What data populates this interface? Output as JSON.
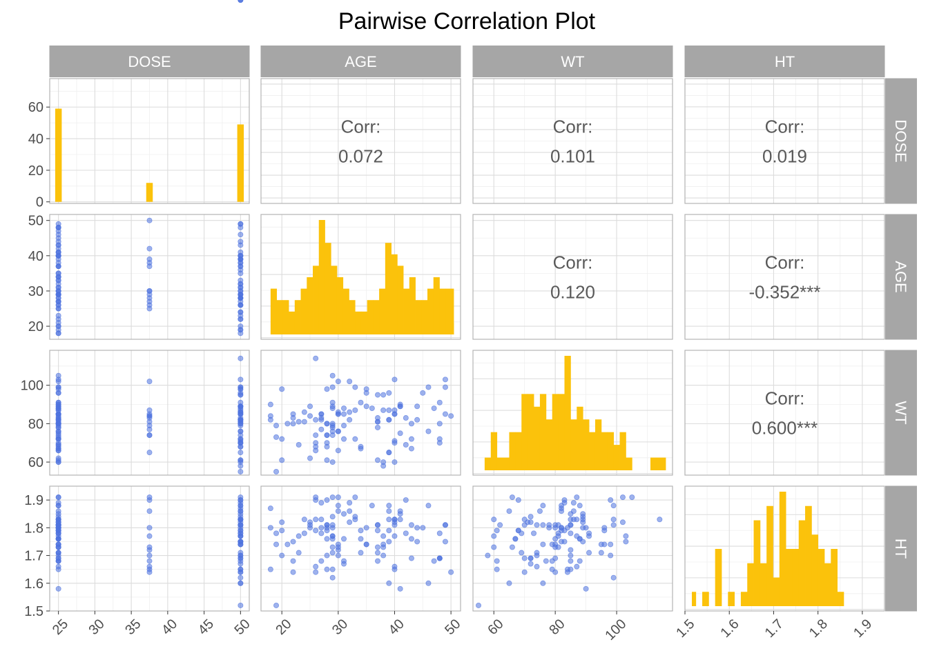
{
  "chart_data": {
    "type": "pairs",
    "title": "Pairwise Correlation Plot",
    "variables": [
      "DOSE",
      "AGE",
      "WT",
      "HT"
    ],
    "corr_label": "Corr:",
    "correlations": [
      {
        "row": "AGE",
        "col": "DOSE",
        "text": "0.072"
      },
      {
        "row": "WT",
        "col": "DOSE",
        "text": "0.101"
      },
      {
        "row": "HT",
        "col": "DOSE",
        "text": "0.019"
      },
      {
        "row": "WT",
        "col": "AGE",
        "text": "0.120"
      },
      {
        "row": "HT",
        "col": "AGE",
        "text": "-0.352***"
      },
      {
        "row": "HT",
        "col": "WT",
        "text": "0.600***"
      }
    ],
    "axes": {
      "DOSE": {
        "range": [
          23.8,
          51.2
        ],
        "ticks": [
          25,
          30,
          35,
          40,
          45,
          50
        ],
        "tick_labels": [
          "25",
          "30",
          "35",
          "40",
          "45",
          "50"
        ]
      },
      "AGE": {
        "range": [
          16.3,
          51.7
        ],
        "ticks": [
          20,
          30,
          40,
          50
        ],
        "tick_labels": [
          "20",
          "30",
          "40",
          "50"
        ]
      },
      "WT": {
        "range": [
          53.2,
          118.2
        ],
        "ticks": [
          60,
          80,
          100
        ],
        "tick_labels": [
          "60",
          "80",
          "100"
        ]
      },
      "HT": {
        "range": [
          1.5,
          1.95
        ],
        "ticks": [
          1.5,
          1.6,
          1.7,
          1.8,
          1.9
        ],
        "tick_labels": [
          "1.5",
          "1.6",
          "1.7",
          "1.8",
          "1.9"
        ]
      }
    },
    "diag_count_axis": {
      "range": [
        -1,
        78
      ],
      "ticks": [
        0,
        20,
        40,
        60
      ],
      "tick_labels": [
        "0",
        "20",
        "40",
        "60"
      ]
    },
    "histograms": {
      "DOSE": {
        "bin_width": 0.9,
        "bins": [
          {
            "x": 25,
            "count": 59
          },
          {
            "x": 37.5,
            "count": 12
          },
          {
            "x": 50,
            "count": 49
          }
        ]
      },
      "AGE": {
        "start": 18,
        "bin_width": 1.07,
        "counts": [
          4,
          3,
          3,
          2,
          3,
          4,
          5,
          6,
          10,
          8,
          6,
          5,
          4,
          3,
          2,
          2,
          3,
          3,
          4,
          8,
          7,
          6,
          4,
          5,
          3,
          3,
          4,
          5,
          4,
          4,
          4,
          1
        ]
      },
      "WT": {
        "start": 57,
        "bin_width": 2.0,
        "counts": [
          1,
          3,
          1,
          1,
          3,
          3,
          6,
          6,
          5,
          6,
          4,
          6,
          6,
          9,
          4,
          5,
          4,
          3,
          4,
          3,
          3,
          2,
          3,
          1,
          0,
          0,
          0,
          1,
          1,
          1
        ]
      },
      "HT": {
        "start": 1.51,
        "bin_width": 0.0145,
        "counts": [
          1,
          0,
          1,
          0,
          4,
          0,
          1,
          0,
          1,
          3,
          6,
          3,
          7,
          2,
          8,
          4,
          4,
          6,
          7,
          5,
          4,
          3,
          4,
          1
        ]
      }
    },
    "points": {
      "DOSE": [
        25,
        25,
        25,
        25,
        25,
        25,
        25,
        25,
        25,
        25,
        25,
        25,
        25,
        25,
        25,
        25,
        25,
        25,
        25,
        25,
        25,
        25,
        25,
        25,
        25,
        25,
        25,
        25,
        25,
        25,
        25,
        25,
        25,
        25,
        25,
        25,
        25,
        25,
        25,
        25,
        25,
        25,
        25,
        25,
        25,
        25,
        25,
        25,
        25,
        25,
        25,
        25,
        25,
        25,
        25,
        25,
        25,
        25,
        25,
        37.5,
        37.5,
        37.5,
        37.5,
        37.5,
        37.5,
        37.5,
        37.5,
        37.5,
        37.5,
        37.5,
        37.5,
        50,
        50,
        50,
        50,
        50,
        50,
        50,
        50,
        50,
        50,
        50,
        50,
        50,
        50,
        50,
        50,
        50,
        50,
        50,
        50,
        50,
        50,
        50,
        50,
        50,
        50,
        50,
        50,
        50,
        50,
        50,
        50,
        50,
        50,
        50,
        50,
        50,
        50,
        50,
        50,
        50,
        50,
        50,
        50,
        50,
        50,
        50,
        50,
        50,
        50
      ],
      "AGE": [
        42,
        45,
        34,
        37,
        40,
        41,
        44,
        29,
        47,
        35,
        30,
        21,
        32,
        27,
        43,
        27,
        25,
        30,
        37,
        18,
        22,
        27,
        28,
        30,
        23,
        41,
        40,
        48,
        46,
        20,
        35,
        33,
        34,
        39,
        37,
        48,
        31,
        40,
        40,
        25,
        29,
        33,
        26,
        38,
        48,
        43,
        19,
        29,
        28,
        29,
        18,
        31,
        20,
        29,
        29,
        41,
        26,
        49,
        34,
        37,
        25,
        30,
        29,
        27,
        50,
        28,
        42,
        39,
        38,
        26,
        30,
        43,
        36,
        23,
        30,
        28,
        19,
        32,
        22,
        46,
        39,
        24,
        33,
        39,
        41,
        31,
        40,
        31,
        28,
        44,
        32,
        28,
        48,
        29,
        49,
        30,
        49,
        37,
        37,
        38,
        39,
        38,
        22,
        40,
        28,
        18,
        40,
        29,
        29,
        24,
        28,
        35,
        20,
        26,
        39,
        26,
        26,
        27,
        19,
        29
      ],
      "WT": [
        69,
        96,
        91,
        78,
        60,
        89,
        82,
        76,
        88,
        98,
        85,
        80,
        102,
        85,
        67,
        83,
        89,
        66,
        83,
        90,
        85,
        82,
        80,
        76,
        69,
        90,
        103,
        70,
        99,
        72,
        96,
        99,
        67,
        87,
        81,
        72,
        88,
        85,
        87,
        62,
        105,
        72,
        82,
        60,
        91,
        80,
        73,
        74,
        80,
        88,
        84,
        79,
        61,
        78,
        80,
        75,
        66,
        85,
        68,
        81,
        84,
        85,
        79,
        77,
        84,
        74,
        83,
        65,
        87,
        74,
        102,
        72,
        88,
        81,
        76,
        74,
        79,
        82,
        83,
        76,
        82,
        86,
        87,
        65,
        89,
        85,
        70,
        72,
        68,
        89,
        86,
        70,
        80,
        91,
        103,
        86,
        99,
        95,
        61,
        58,
        96,
        95,
        80,
        85,
        98,
        82,
        71,
        89,
        99,
        81,
        61,
        89,
        98,
        68,
        82,
        114,
        70,
        85,
        55,
        60
      ],
      "HT": [
        1.78,
        1.8,
        1.71,
        1.81,
        1.83,
        1.85,
        1.8,
        1.81,
        1.68,
        1.74,
        1.7,
        1.74,
        1.82,
        1.83,
        1.76,
        1.89,
        1.82,
        1.73,
        1.79,
        1.8,
        1.68,
        1.8,
        1.8,
        1.88,
        1.71,
        1.58,
        1.77,
        1.69,
        1.88,
        1.82,
        1.74,
        1.83,
        1.76,
        1.83,
        1.81,
        1.69,
        1.76,
        1.81,
        1.66,
        1.81,
        1.91,
        1.84,
        1.79,
        1.73,
        1.78,
        1.81,
        1.78,
        1.71,
        1.76,
        1.76,
        1.65,
        1.68,
        1.79,
        1.8,
        1.73,
        1.86,
        1.91,
        1.81,
        1.79,
        1.73,
        1.8,
        1.72,
        1.65,
        1.68,
        1.64,
        1.7,
        1.9,
        1.86,
        1.77,
        1.66,
        1.91,
        1.69,
        1.88,
        1.77,
        1.74,
        1.81,
        1.74,
        1.86,
        1.75,
        1.6,
        1.75,
        1.83,
        1.91,
        1.6,
        1.83,
        1.85,
        1.83,
        1.67,
        1.79,
        1.75,
        1.89,
        1.81,
        1.69,
        1.77,
        1.75,
        1.86,
        1.81,
        1.71,
        1.68,
        1.7,
        1.79,
        1.74,
        1.64,
        1.65,
        1.9,
        1.87,
        1.82,
        1.84,
        1.62,
        1.78,
        1.65,
        1.8,
        1.7,
        1.9,
        1.88,
        1.83,
        1.64,
        1.78,
        1.52,
        1.77
      ]
    },
    "colors": {
      "points": "#4e73df",
      "histogram": "#fbc20b",
      "strip": "#a6a6a6",
      "strip_text": "#ffffff",
      "panel_border": "#b3b3b3",
      "grid_major": "#dcdcdc",
      "grid_minor": "#efefef"
    }
  }
}
